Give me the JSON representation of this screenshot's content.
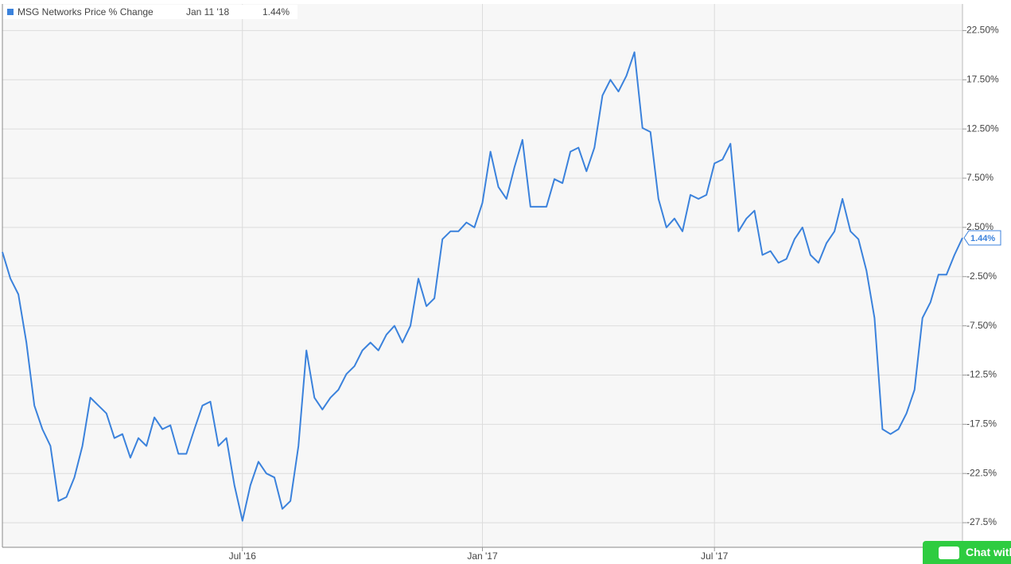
{
  "chart_data": {
    "type": "line",
    "legend": {
      "name": "MSG Networks Price % Change",
      "date": "Jan 11 '18",
      "value": "1.44%"
    },
    "categories": [
      null,
      null,
      null,
      null,
      null,
      null,
      null,
      null,
      null,
      null,
      null,
      null,
      null,
      null,
      null,
      null,
      null,
      null,
      null,
      null,
      null,
      null,
      null,
      null,
      null,
      null,
      null,
      null,
      null,
      null,
      "Jul '16",
      null,
      null,
      null,
      null,
      null,
      null,
      null,
      null,
      null,
      null,
      null,
      null,
      null,
      null,
      null,
      null,
      null,
      null,
      null,
      null,
      null,
      null,
      null,
      null,
      null,
      null,
      null,
      null,
      null,
      "Jan '17",
      null,
      null,
      null,
      null,
      null,
      null,
      null,
      null,
      null,
      null,
      null,
      null,
      null,
      null,
      null,
      null,
      null,
      null,
      null,
      null,
      null,
      null,
      null,
      null,
      null,
      null,
      null,
      null,
      "Jul '17",
      null,
      null,
      null,
      null,
      null,
      null,
      null,
      null,
      null,
      null,
      null,
      null,
      null,
      null,
      null,
      null,
      null,
      null,
      null,
      null,
      null,
      null,
      null,
      null,
      null,
      null,
      null,
      null,
      null,
      null,
      null
    ],
    "series": [
      {
        "name": "MSG Networks Price % Change",
        "color": "#3b82dc",
        "values": [
          0.0,
          -2.7,
          -4.3,
          -9.2,
          -15.6,
          -18.0,
          -19.7,
          -25.3,
          -24.9,
          -22.9,
          -19.7,
          -14.8,
          -15.6,
          -16.4,
          -18.9,
          -18.5,
          -20.9,
          -18.9,
          -19.7,
          -16.8,
          -18.0,
          -17.6,
          -20.5,
          -20.5,
          -18.0,
          -15.6,
          -15.2,
          -19.7,
          -18.9,
          -23.7,
          -27.3,
          -23.7,
          -21.3,
          -22.5,
          -22.9,
          -26.1,
          -25.3,
          -19.7,
          -10.0,
          -14.8,
          -16.0,
          -14.8,
          -14.0,
          -12.4,
          -11.6,
          -10.0,
          -9.2,
          -10.0,
          -8.4,
          -7.5,
          -9.2,
          -7.5,
          -2.7,
          -5.5,
          -4.7,
          1.3,
          2.1,
          2.1,
          3.0,
          2.5,
          5.0,
          10.2,
          6.6,
          5.4,
          8.6,
          11.4,
          4.6,
          4.6,
          4.6,
          7.4,
          7.0,
          10.2,
          10.6,
          8.2,
          10.6,
          15.9,
          17.5,
          16.3,
          17.9,
          20.3,
          12.6,
          12.2,
          5.4,
          2.5,
          3.4,
          2.1,
          5.8,
          5.4,
          5.8,
          9.0,
          9.4,
          11.0,
          2.1,
          3.4,
          4.2,
          -0.3,
          0.1,
          -1.1,
          -0.7,
          1.3,
          2.5,
          -0.3,
          -1.1,
          0.9,
          2.1,
          5.4,
          2.1,
          1.3,
          -1.9,
          -6.7,
          -18.0,
          -18.5,
          -18.0,
          -16.4,
          -14.0,
          -6.7,
          -5.1,
          -2.3,
          -2.3,
          -0.3,
          1.44
        ]
      }
    ],
    "ylim": [
      -30,
      25.2
    ],
    "yticks": [
      {
        "value": 22.5,
        "label": "22.50%"
      },
      {
        "value": 17.5,
        "label": "17.50%"
      },
      {
        "value": 12.5,
        "label": "12.50%"
      },
      {
        "value": 7.5,
        "label": "7.50%"
      },
      {
        "value": 2.5,
        "label": "2.50%"
      },
      {
        "value": -2.5,
        "label": "-2.50%"
      },
      {
        "value": -7.5,
        "label": "-7.50%"
      },
      {
        "value": -12.5,
        "label": "-12.5%"
      },
      {
        "value": -17.5,
        "label": "-17.5%"
      },
      {
        "value": -22.5,
        "label": "-22.5%"
      },
      {
        "value": -27.5,
        "label": "-27.5%"
      }
    ],
    "grid": true,
    "chat_button": "Chat with"
  }
}
